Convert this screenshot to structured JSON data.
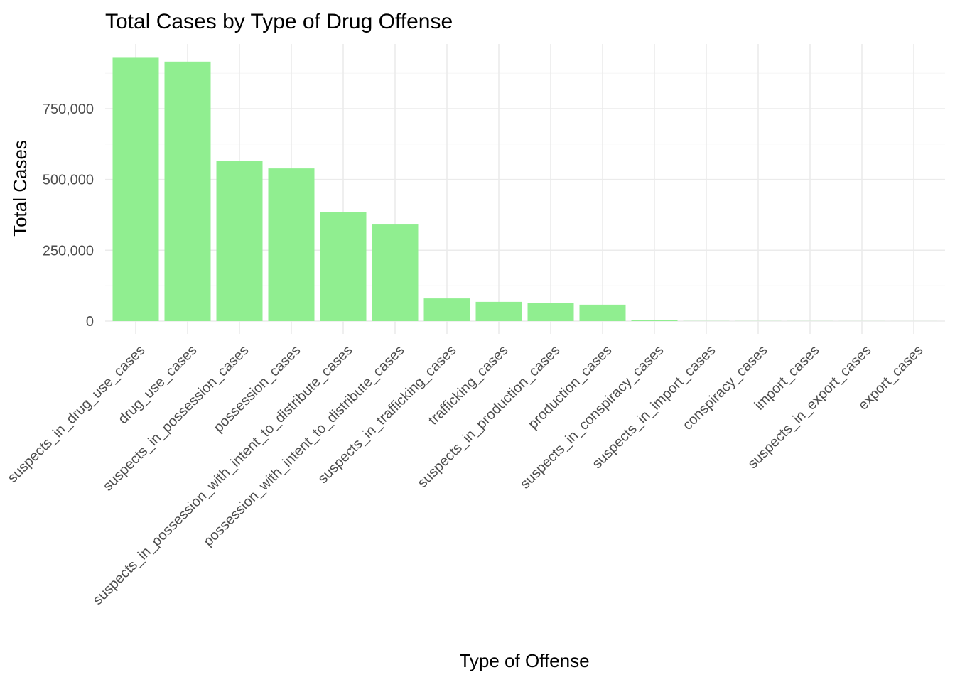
{
  "chart_data": {
    "type": "bar",
    "title": "Total Cases by Type of Drug Offense",
    "xlabel": "Type of Offense",
    "ylabel": "Total Cases",
    "categories": [
      "suspects_in_drug_use_cases",
      "drug_use_cases",
      "suspects_in_possession_cases",
      "possession_cases",
      "suspects_in_possession_with_intent_to_distribute_cases",
      "possession_with_intent_to_distribute_cases",
      "suspects_in_trafficking_cases",
      "trafficking_cases",
      "suspects_in_production_cases",
      "production_cases",
      "suspects_in_conspiracy_cases",
      "suspects_in_import_cases",
      "conspiracy_cases",
      "import_cases",
      "suspects_in_export_cases",
      "export_cases"
    ],
    "values": [
      932000,
      916000,
      566000,
      539000,
      386000,
      341000,
      80000,
      68000,
      65000,
      58000,
      3000,
      500,
      400,
      300,
      200,
      100
    ],
    "ylim": [
      0,
      930000
    ],
    "yticks": [
      0,
      250000,
      500000,
      750000
    ],
    "ytick_labels": [
      "0",
      "250,000",
      "500,000",
      "750,000"
    ],
    "grid": true,
    "bar_color": "#90ee90"
  }
}
